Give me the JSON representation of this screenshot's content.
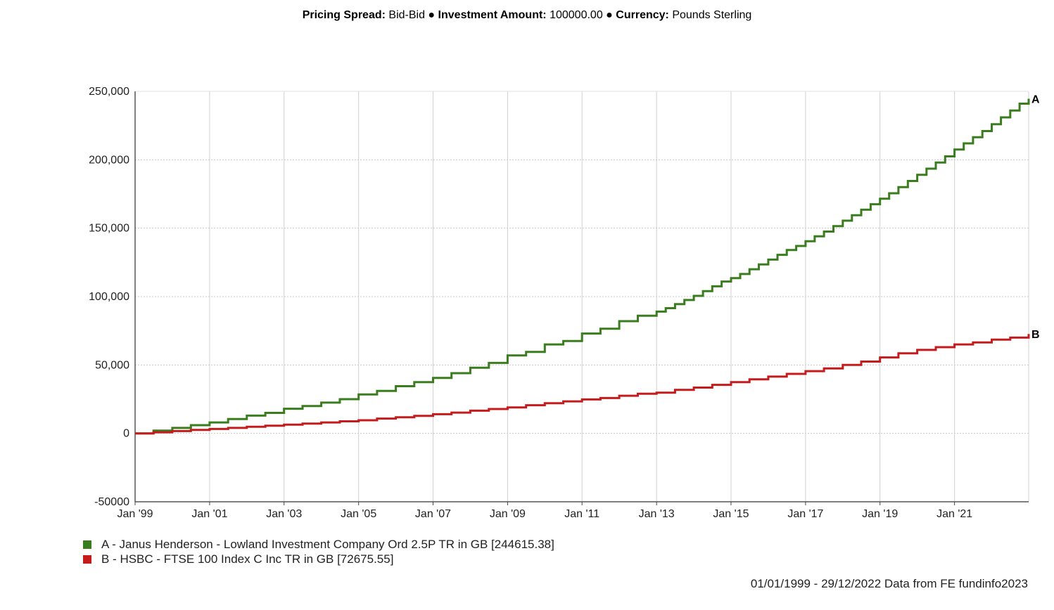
{
  "header": {
    "pricing_label": "Pricing Spread:",
    "pricing_value": "Bid-Bid",
    "sep1": "●",
    "amount_label": "Investment Amount:",
    "amount_value": "100000.00",
    "sep2": "●",
    "currency_label": "Currency:",
    "currency_value": "Pounds Sterling"
  },
  "chart_data": {
    "type": "line",
    "title": "",
    "xlabel": "",
    "ylabel": "",
    "x_range": [
      "1999-01-01",
      "2022-12-29"
    ],
    "ylim": [
      -50000,
      250000
    ],
    "y_ticks": [
      {
        "value": 250000,
        "label": "250,000"
      },
      {
        "value": 200000,
        "label": "200,000"
      },
      {
        "value": 150000,
        "label": "150,000"
      },
      {
        "value": 100000,
        "label": "100,000"
      },
      {
        "value": 50000,
        "label": "50,000"
      },
      {
        "value": 0,
        "label": "0"
      },
      {
        "value": -50000,
        "label": "-50000"
      }
    ],
    "x_ticks": [
      {
        "date": "1999-01-01",
        "label": "Jan '99"
      },
      {
        "date": "2001-01-01",
        "label": "Jan '01"
      },
      {
        "date": "2003-01-01",
        "label": "Jan '03"
      },
      {
        "date": "2005-01-01",
        "label": "Jan '05"
      },
      {
        "date": "2007-01-01",
        "label": "Jan '07"
      },
      {
        "date": "2009-01-01",
        "label": "Jan '09"
      },
      {
        "date": "2011-01-01",
        "label": "Jan '11"
      },
      {
        "date": "2013-01-01",
        "label": "Jan '13"
      },
      {
        "date": "2015-01-01",
        "label": "Jan '15"
      },
      {
        "date": "2017-01-01",
        "label": "Jan '17"
      },
      {
        "date": "2019-01-01",
        "label": "Jan '19"
      },
      {
        "date": "2021-01-01",
        "label": "Jan '21"
      }
    ],
    "grid": true,
    "legend_position": "bottom-left",
    "series": [
      {
        "name": "A - Janus Henderson - Lowland Investment Company Ord 2.5P TR in GB [244615.38]",
        "end_label": "A",
        "color": "#3a7d1e",
        "x": [
          "1999-01-01",
          "1999-04-01",
          "1999-07-01",
          "1999-10-01",
          "2000-01-01",
          "2000-04-01",
          "2000-07-01",
          "2000-10-01",
          "2001-01-01",
          "2001-04-01",
          "2001-07-01",
          "2001-10-01",
          "2002-01-01",
          "2002-04-01",
          "2002-07-01",
          "2002-10-01",
          "2003-01-01",
          "2003-04-01",
          "2003-07-01",
          "2003-10-01",
          "2004-01-01",
          "2004-04-01",
          "2004-07-01",
          "2004-10-01",
          "2005-01-01",
          "2005-04-01",
          "2005-07-01",
          "2005-10-01",
          "2006-01-01",
          "2006-04-01",
          "2006-07-01",
          "2006-10-01",
          "2007-01-01",
          "2007-04-01",
          "2007-07-01",
          "2007-10-01",
          "2008-01-01",
          "2008-04-01",
          "2008-07-01",
          "2008-10-01",
          "2009-01-01",
          "2009-04-01",
          "2009-07-01",
          "2009-10-01",
          "2010-01-01",
          "2010-04-01",
          "2010-07-01",
          "2010-10-01",
          "2011-01-01",
          "2011-04-01",
          "2011-07-01",
          "2011-10-01",
          "2012-01-01",
          "2012-04-01",
          "2012-07-01",
          "2012-10-01",
          "2013-01-01",
          "2013-04-01",
          "2013-07-01",
          "2013-10-01",
          "2014-01-01",
          "2014-04-01",
          "2014-07-01",
          "2014-10-01",
          "2015-01-01",
          "2015-04-01",
          "2015-07-01",
          "2015-10-01",
          "2016-01-01",
          "2016-04-01",
          "2016-07-01",
          "2016-10-01",
          "2017-01-01",
          "2017-04-01",
          "2017-07-01",
          "2017-10-01",
          "2018-01-01",
          "2018-04-01",
          "2018-07-01",
          "2018-10-01",
          "2019-01-01",
          "2019-04-01",
          "2019-07-01",
          "2019-10-01",
          "2020-01-01",
          "2020-04-01",
          "2020-07-01",
          "2020-10-01",
          "2021-01-01",
          "2021-04-01",
          "2021-07-01",
          "2021-10-01",
          "2022-01-01",
          "2022-04-01",
          "2022-07-01",
          "2022-10-01",
          "2022-12-29"
        ],
        "values": [
          0,
          0,
          2000,
          2000,
          4000,
          4000,
          6000,
          6000,
          8000,
          8000,
          10500,
          10500,
          13000,
          13000,
          15000,
          15000,
          18000,
          18000,
          20000,
          20000,
          22500,
          22500,
          25000,
          25000,
          28500,
          28500,
          31000,
          31000,
          34500,
          34500,
          37500,
          37500,
          40500,
          40500,
          44000,
          44000,
          48000,
          48000,
          51500,
          51500,
          57000,
          57000,
          59500,
          59500,
          65000,
          65000,
          67500,
          67500,
          73000,
          73000,
          76500,
          76500,
          82000,
          82000,
          86000,
          86000,
          89000,
          91500,
          94500,
          97500,
          100500,
          104000,
          107500,
          111000,
          113500,
          116500,
          120000,
          123500,
          127000,
          130500,
          134000,
          137000,
          140500,
          144000,
          147500,
          151500,
          155500,
          159500,
          163500,
          167500,
          171500,
          175500,
          180000,
          184500,
          189000,
          193500,
          198000,
          202500,
          207500,
          212000,
          216500,
          221000,
          226000,
          231000,
          236000,
          241000,
          244615
        ]
      },
      {
        "name": "B - HSBC - FTSE 100 Index C Inc TR in GB [72675.55]",
        "end_label": "B",
        "color": "#c41c1c",
        "x": [
          "1999-01-01",
          "1999-04-01",
          "1999-07-01",
          "1999-10-01",
          "2000-01-01",
          "2000-04-01",
          "2000-07-01",
          "2000-10-01",
          "2001-01-01",
          "2001-04-01",
          "2001-07-01",
          "2001-10-01",
          "2002-01-01",
          "2002-04-01",
          "2002-07-01",
          "2002-10-01",
          "2003-01-01",
          "2003-04-01",
          "2003-07-01",
          "2003-10-01",
          "2004-01-01",
          "2004-04-01",
          "2004-07-01",
          "2004-10-01",
          "2005-01-01",
          "2005-04-01",
          "2005-07-01",
          "2005-10-01",
          "2006-01-01",
          "2006-04-01",
          "2006-07-01",
          "2006-10-01",
          "2007-01-01",
          "2007-04-01",
          "2007-07-01",
          "2007-10-01",
          "2008-01-01",
          "2008-04-01",
          "2008-07-01",
          "2008-10-01",
          "2009-01-01",
          "2009-04-01",
          "2009-07-01",
          "2009-10-01",
          "2010-01-01",
          "2010-04-01",
          "2010-07-01",
          "2010-10-01",
          "2011-01-01",
          "2011-04-01",
          "2011-07-01",
          "2011-10-01",
          "2012-01-01",
          "2012-04-01",
          "2012-07-01",
          "2012-10-01",
          "2013-01-01",
          "2013-04-01",
          "2013-07-01",
          "2013-10-01",
          "2014-01-01",
          "2014-04-01",
          "2014-07-01",
          "2014-10-01",
          "2015-01-01",
          "2015-04-01",
          "2015-07-01",
          "2015-10-01",
          "2016-01-01",
          "2016-04-01",
          "2016-07-01",
          "2016-10-01",
          "2017-01-01",
          "2017-04-01",
          "2017-07-01",
          "2017-10-01",
          "2018-01-01",
          "2018-04-01",
          "2018-07-01",
          "2018-10-01",
          "2019-01-01",
          "2019-04-01",
          "2019-07-01",
          "2019-10-01",
          "2020-01-01",
          "2020-04-01",
          "2020-07-01",
          "2020-10-01",
          "2021-01-01",
          "2021-04-01",
          "2021-07-01",
          "2021-10-01",
          "2022-01-01",
          "2022-04-01",
          "2022-07-01",
          "2022-10-01",
          "2022-12-29"
        ],
        "values": [
          0,
          0,
          800,
          800,
          1700,
          1700,
          2500,
          2500,
          3200,
          3200,
          4000,
          4000,
          4800,
          4800,
          5600,
          5600,
          6400,
          6400,
          7200,
          7200,
          8000,
          8000,
          8800,
          8800,
          9600,
          9600,
          10800,
          10800,
          11800,
          11800,
          12800,
          12800,
          14000,
          14000,
          15200,
          15200,
          16600,
          16600,
          17800,
          17800,
          19000,
          19000,
          20600,
          20600,
          22000,
          22000,
          23400,
          23400,
          24800,
          24800,
          25800,
          25800,
          27500,
          27500,
          29000,
          29000,
          29800,
          29800,
          31800,
          31800,
          33500,
          33500,
          35500,
          35500,
          37500,
          37500,
          39500,
          39500,
          41500,
          41500,
          43500,
          43500,
          45500,
          45500,
          47500,
          47500,
          50000,
          50000,
          52500,
          52500,
          55500,
          55500,
          58500,
          58500,
          61000,
          61000,
          63000,
          63000,
          65000,
          65000,
          66500,
          66500,
          68500,
          68500,
          70000,
          70000,
          72676
        ]
      }
    ]
  },
  "footer": {
    "text": "01/01/1999 - 29/12/2022 Data from FE fundinfo2023"
  }
}
